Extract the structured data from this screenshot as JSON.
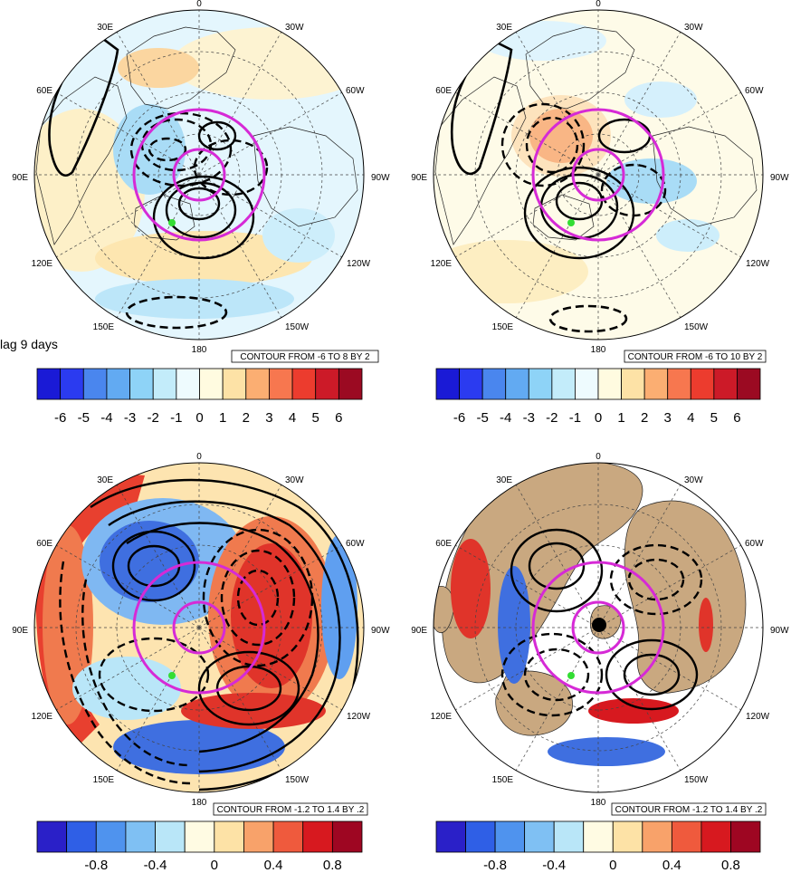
{
  "figure": {
    "lag_label": "lag 9 days",
    "panels": [
      {
        "name": "top-left",
        "lon_labels": [
          "0",
          "30W",
          "60W",
          "90W",
          "120W",
          "150W",
          "180",
          "150E",
          "120E",
          "90E",
          "60E",
          "30E"
        ],
        "contour_info": "CONTOUR FROM -6 TO 8 BY 2",
        "colorbar": {
          "colors": [
            "#1a1ad6",
            "#2b3bf0",
            "#4a86ee",
            "#62aaf2",
            "#8ed3f7",
            "#c3ecfa",
            "#eefbfe",
            "#fffbe0",
            "#fde2a6",
            "#fbae72",
            "#f7774f",
            "#ec3c2e",
            "#cc1a28",
            "#9b0a22"
          ],
          "tick_labels": [
            "-6",
            "-5",
            "-4",
            "-3",
            "-2",
            "-1",
            "0",
            "1",
            "2",
            "3",
            "4",
            "5",
            "6"
          ]
        }
      },
      {
        "name": "top-right",
        "lon_labels": [
          "0",
          "30W",
          "60W",
          "90W",
          "120W",
          "150W",
          "180",
          "150E",
          "120E",
          "90E",
          "60E",
          "30E"
        ],
        "contour_info": "CONTOUR FROM -6 TO 10 BY 2",
        "colorbar": {
          "colors": [
            "#1a1ad6",
            "#2b3bf0",
            "#4a86ee",
            "#62aaf2",
            "#8ed3f7",
            "#c3ecfa",
            "#eefbfe",
            "#fffbe0",
            "#fde2a6",
            "#fbae72",
            "#f7774f",
            "#ec3c2e",
            "#cc1a28",
            "#9b0a22"
          ],
          "tick_labels": [
            "-6",
            "-5",
            "-4",
            "-3",
            "-2",
            "-1",
            "0",
            "1",
            "2",
            "3",
            "4",
            "5",
            "6"
          ]
        }
      },
      {
        "name": "bottom-left",
        "lon_labels": [
          "0",
          "30W",
          "60W",
          "90W",
          "120W",
          "150W",
          "180",
          "150E",
          "120E",
          "90E",
          "60E",
          "30E"
        ],
        "contour_info": "CONTOUR FROM -1.2 TO 1.4 BY .2",
        "colorbar": {
          "colors": [
            "#2a20c8",
            "#2f5fe6",
            "#4f93ee",
            "#7fc0f3",
            "#b9e6f8",
            "#fffbe3",
            "#fde2a6",
            "#f8a26a",
            "#ef5a3d",
            "#d7191f",
            "#9e0622"
          ],
          "tick_labels": [
            "-0.8",
            "-0.4",
            "0",
            "0.4",
            "0.8"
          ]
        }
      },
      {
        "name": "bottom-right",
        "lon_labels": [
          "0",
          "30W",
          "60W",
          "90W",
          "120W",
          "150W",
          "180",
          "150E",
          "120E",
          "90E",
          "60E",
          "30E"
        ],
        "contour_info": "CONTOUR FROM -1.2 TO 1.4 BY .2",
        "colorbar": {
          "colors": [
            "#2a20c8",
            "#2f5fe6",
            "#4f93ee",
            "#7fc0f3",
            "#b9e6f8",
            "#fffbe3",
            "#fde2a6",
            "#f8a26a",
            "#ef5a3d",
            "#d7191f",
            "#9e0622"
          ],
          "tick_labels": [
            "-0.8",
            "-0.4",
            "0",
            "0.4",
            "0.8"
          ]
        }
      }
    ]
  }
}
